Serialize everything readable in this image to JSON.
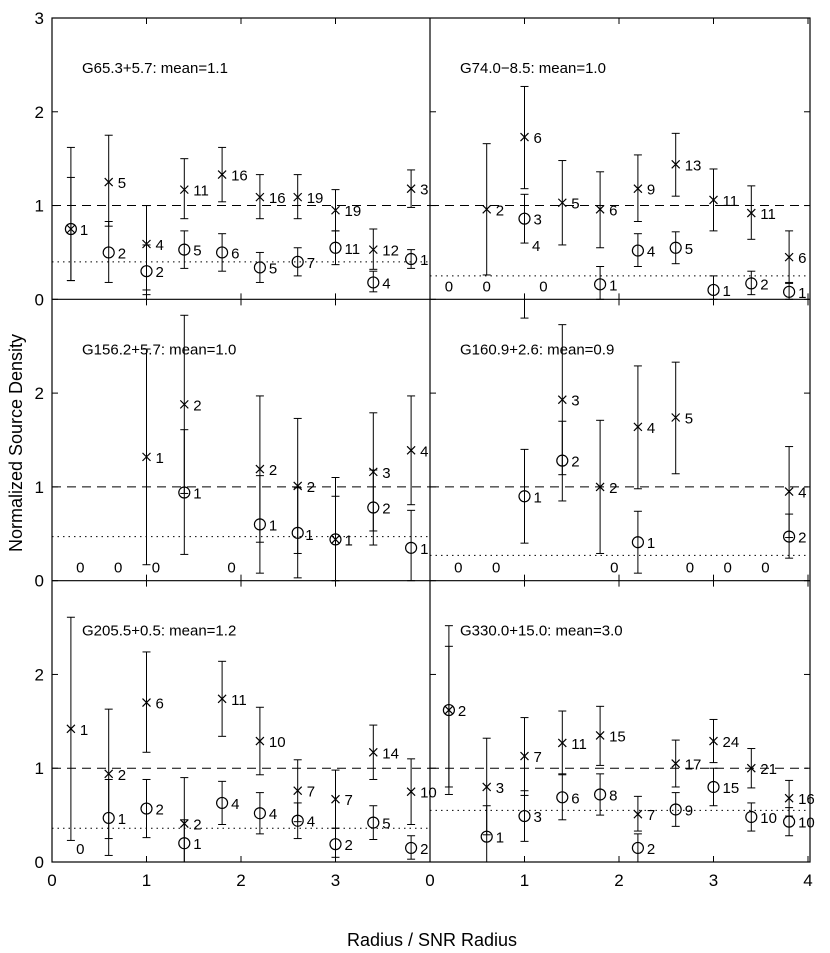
{
  "figure": {
    "ylabel": "Normalized Source Density",
    "xlabel": "Radius / SNR Radius",
    "xticks_left": [
      "0",
      "1",
      "2",
      "3"
    ],
    "xticks_right": [
      "0",
      "1",
      "2",
      "3",
      "4"
    ],
    "yticks_top": [
      "0",
      "1",
      "2",
      "3"
    ],
    "yticks_other": [
      "0",
      "1",
      "2"
    ]
  },
  "chart_data": [
    {
      "type": "scatter",
      "title": "G65.3+5.7: mean=1.1",
      "xlim": [
        0,
        4
      ],
      "ylim": [
        0,
        3
      ],
      "dashed_level": 1.0,
      "dotted_level": 0.4,
      "series": [
        {
          "name": "x markers",
          "marker": "x",
          "points": [
            {
              "x": 0.2,
              "y": 0.75,
              "lo": 0.2,
              "hi": 1.3,
              "label": "1"
            },
            {
              "x": 0.6,
              "y": 1.25,
              "lo": 0.78,
              "hi": 1.75,
              "label": "5"
            },
            {
              "x": 1.0,
              "y": 0.59,
              "lo": 0.1,
              "hi": 1.0,
              "label": "4"
            },
            {
              "x": 1.4,
              "y": 1.17,
              "lo": 0.86,
              "hi": 1.5,
              "label": "11"
            },
            {
              "x": 1.8,
              "y": 1.33,
              "lo": 1.04,
              "hi": 1.62,
              "label": "16"
            },
            {
              "x": 2.2,
              "y": 1.09,
              "lo": 0.86,
              "hi": 1.33,
              "label": "16"
            },
            {
              "x": 2.6,
              "y": 1.09,
              "lo": 0.86,
              "hi": 1.33,
              "label": "19"
            },
            {
              "x": 3.0,
              "y": 0.95,
              "lo": 0.73,
              "hi": 1.17,
              "label": "19"
            },
            {
              "x": 3.4,
              "y": 0.53,
              "lo": 0.32,
              "hi": 0.75,
              "label": "12"
            },
            {
              "x": 3.8,
              "y": 1.18,
              "lo": 0.98,
              "hi": 1.38,
              "label": "3"
            }
          ]
        },
        {
          "name": "o markers",
          "marker": "o",
          "points": [
            {
              "x": 0.2,
              "y": 0.75,
              "lo": 0.2,
              "hi": 1.62,
              "label": ""
            },
            {
              "x": 0.6,
              "y": 0.5,
              "lo": 0.18,
              "hi": 0.83,
              "label": "2"
            },
            {
              "x": 1.0,
              "y": 0.3,
              "lo": 0.05,
              "hi": 0.58,
              "label": "2"
            },
            {
              "x": 1.4,
              "y": 0.53,
              "lo": 0.33,
              "hi": 0.73,
              "label": "5"
            },
            {
              "x": 1.8,
              "y": 0.5,
              "lo": 0.3,
              "hi": 0.7,
              "label": "6"
            },
            {
              "x": 2.2,
              "y": 0.34,
              "lo": 0.18,
              "hi": 0.5,
              "label": "5"
            },
            {
              "x": 2.6,
              "y": 0.4,
              "lo": 0.25,
              "hi": 0.55,
              "label": "7"
            },
            {
              "x": 3.0,
              "y": 0.55,
              "lo": 0.37,
              "hi": 0.73,
              "label": "11"
            },
            {
              "x": 3.4,
              "y": 0.18,
              "lo": 0.08,
              "hi": 0.3,
              "label": "4"
            },
            {
              "x": 3.8,
              "y": 0.43,
              "lo": 0.33,
              "hi": 0.53,
              "label": "1"
            }
          ]
        }
      ],
      "zero_labels": []
    },
    {
      "type": "scatter",
      "title": "G74.0−8.5: mean=1.0",
      "xlim": [
        0,
        4
      ],
      "ylim": [
        0,
        3
      ],
      "dashed_level": 1.0,
      "dotted_level": 0.25,
      "series": [
        {
          "name": "x markers",
          "marker": "x",
          "points": [
            {
              "x": 0.6,
              "y": 0.96,
              "lo": 0.26,
              "hi": 1.66,
              "label": "2"
            },
            {
              "x": 1.0,
              "y": 1.73,
              "lo": 1.18,
              "hi": 2.27,
              "label": "6"
            },
            {
              "x": 1.4,
              "y": 1.03,
              "lo": 0.58,
              "hi": 1.48,
              "label": "5"
            },
            {
              "x": 1.8,
              "y": 0.96,
              "lo": 0.55,
              "hi": 1.36,
              "label": "6"
            },
            {
              "x": 2.2,
              "y": 1.18,
              "lo": 0.83,
              "hi": 1.54,
              "label": "9"
            },
            {
              "x": 2.6,
              "y": 1.44,
              "lo": 1.1,
              "hi": 1.77,
              "label": "13"
            },
            {
              "x": 3.0,
              "y": 1.06,
              "lo": 0.73,
              "hi": 1.39,
              "label": "11"
            },
            {
              "x": 3.4,
              "y": 0.92,
              "lo": 0.64,
              "hi": 1.21,
              "label": "11"
            },
            {
              "x": 3.8,
              "y": 0.45,
              "lo": 0.17,
              "hi": 0.73,
              "label": "6"
            }
          ]
        },
        {
          "name": "o markers",
          "marker": "o",
          "points": [
            {
              "x": 1.0,
              "y": 0.86,
              "lo": 0.6,
              "hi": 1.12,
              "label": "3"
            },
            {
              "x": 1.8,
              "y": 0.16,
              "lo": 0.0,
              "hi": 0.35,
              "label": "1"
            },
            {
              "x": 2.2,
              "y": 0.52,
              "lo": 0.35,
              "hi": 0.7,
              "label": "4"
            },
            {
              "x": 2.6,
              "y": 0.55,
              "lo": 0.38,
              "hi": 0.72,
              "label": "5"
            },
            {
              "x": 3.0,
              "y": 0.1,
              "lo": 0.0,
              "hi": 0.25,
              "label": "1"
            },
            {
              "x": 3.4,
              "y": 0.17,
              "lo": 0.05,
              "hi": 0.3,
              "label": "2"
            },
            {
              "x": 3.8,
              "y": 0.08,
              "lo": 0.0,
              "hi": 0.18,
              "label": "1"
            }
          ]
        }
      ],
      "zero_labels": [
        0.2,
        0.6,
        1.2
      ],
      "extra_labels": [
        {
          "x": 1.08,
          "y": 0.58,
          "text": "4"
        }
      ]
    },
    {
      "type": "scatter",
      "title": "G156.2+5.7: mean=1.0",
      "xlim": [
        0,
        4
      ],
      "ylim": [
        0,
        3
      ],
      "dashed_level": 1.0,
      "dotted_level": 0.47,
      "series": [
        {
          "name": "x markers",
          "marker": "x",
          "points": [
            {
              "x": 1.0,
              "y": 1.32,
              "lo": 0.17,
              "hi": 2.47,
              "label": "1"
            },
            {
              "x": 1.4,
              "y": 1.88,
              "lo": 0.93,
              "hi": 2.83,
              "label": "2"
            },
            {
              "x": 2.2,
              "y": 1.19,
              "lo": 0.41,
              "hi": 1.97,
              "label": "2"
            },
            {
              "x": 2.6,
              "y": 1.01,
              "lo": 0.29,
              "hi": 1.73,
              "label": "2"
            },
            {
              "x": 3.0,
              "y": 0.44,
              "lo": 0.0,
              "hi": 1.1,
              "label": "1"
            },
            {
              "x": 3.4,
              "y": 1.16,
              "lo": 0.53,
              "hi": 1.79,
              "label": "3"
            },
            {
              "x": 3.8,
              "y": 1.39,
              "lo": 0.81,
              "hi": 1.97,
              "label": "4"
            }
          ]
        },
        {
          "name": "o markers",
          "marker": "o",
          "points": [
            {
              "x": 1.4,
              "y": 0.94,
              "lo": 0.28,
              "hi": 1.61,
              "label": "1"
            },
            {
              "x": 2.2,
              "y": 0.6,
              "lo": 0.08,
              "hi": 1.12,
              "label": "1"
            },
            {
              "x": 2.6,
              "y": 0.51,
              "lo": 0.03,
              "hi": 0.99,
              "label": ""
            },
            {
              "x": 3.0,
              "y": 0.44,
              "lo": 0.0,
              "hi": 0.9,
              "label": ""
            },
            {
              "x": 3.4,
              "y": 0.78,
              "lo": 0.38,
              "hi": 1.18,
              "label": "2"
            },
            {
              "x": 3.8,
              "y": 0.35,
              "lo": 0.0,
              "hi": 0.75,
              "label": "1"
            }
          ]
        }
      ],
      "zero_labels": [
        0.3,
        0.7,
        1.1,
        1.9
      ],
      "extra_labels": [
        {
          "x": 2.68,
          "y": 0.5,
          "text": "1"
        }
      ]
    },
    {
      "type": "scatter",
      "title": "G160.9+2.6: mean=0.9",
      "xlim": [
        0,
        4
      ],
      "ylim": [
        0,
        3
      ],
      "dashed_level": 1.0,
      "dotted_level": 0.27,
      "series": [
        {
          "name": "x markers",
          "marker": "x",
          "points": [
            {
              "x": 1.4,
              "y": 1.93,
              "lo": 1.13,
              "hi": 2.73,
              "label": "3"
            },
            {
              "x": 1.8,
              "y": 1.0,
              "lo": 0.29,
              "hi": 1.71,
              "label": "2"
            },
            {
              "x": 2.2,
              "y": 1.64,
              "lo": 0.98,
              "hi": 2.29,
              "label": "4"
            },
            {
              "x": 2.6,
              "y": 1.74,
              "lo": 1.14,
              "hi": 2.33,
              "label": "5"
            },
            {
              "x": 3.8,
              "y": 0.95,
              "lo": 0.46,
              "hi": 1.43,
              "label": "4"
            }
          ]
        },
        {
          "name": "o markers",
          "marker": "o",
          "points": [
            {
              "x": 1.0,
              "y": 0.9,
              "lo": 0.4,
              "hi": 1.4,
              "label": "1"
            },
            {
              "x": 1.4,
              "y": 1.28,
              "lo": 0.85,
              "hi": 1.7,
              "label": "2"
            },
            {
              "x": 2.2,
              "y": 0.41,
              "lo": 0.08,
              "hi": 0.74,
              "label": "1"
            },
            {
              "x": 3.8,
              "y": 0.47,
              "lo": 0.24,
              "hi": 0.71,
              "label": "2"
            }
          ]
        }
      ],
      "zero_labels": [
        0.3,
        0.7,
        1.95,
        2.75,
        3.15,
        3.55
      ],
      "top_stub": {
        "x": 1.0,
        "y": 2.8
      }
    },
    {
      "type": "scatter",
      "title": "G205.5+0.5: mean=1.2",
      "xlim": [
        0,
        4
      ],
      "ylim": [
        0,
        3
      ],
      "dashed_level": 1.0,
      "dotted_level": 0.36,
      "series": [
        {
          "name": "x markers",
          "marker": "x",
          "points": [
            {
              "x": 0.2,
              "y": 1.42,
              "lo": 0.23,
              "hi": 2.61,
              "label": "1"
            },
            {
              "x": 0.6,
              "y": 0.94,
              "lo": 0.25,
              "hi": 1.63,
              "label": "2"
            },
            {
              "x": 1.0,
              "y": 1.7,
              "lo": 1.17,
              "hi": 2.24,
              "label": "6"
            },
            {
              "x": 1.4,
              "y": 0.41,
              "lo": 0.0,
              "hi": 0.9,
              "label": "2"
            },
            {
              "x": 1.8,
              "y": 1.74,
              "lo": 1.34,
              "hi": 2.14,
              "label": "11"
            },
            {
              "x": 2.2,
              "y": 1.29,
              "lo": 0.93,
              "hi": 1.65,
              "label": "10"
            },
            {
              "x": 2.6,
              "y": 0.76,
              "lo": 0.43,
              "hi": 1.09,
              "label": "7"
            },
            {
              "x": 3.0,
              "y": 0.67,
              "lo": 0.36,
              "hi": 0.98,
              "label": "7"
            },
            {
              "x": 3.4,
              "y": 1.17,
              "lo": 0.88,
              "hi": 1.46,
              "label": "14"
            },
            {
              "x": 3.8,
              "y": 0.75,
              "lo": 0.4,
              "hi": 1.1,
              "label": "10"
            }
          ]
        },
        {
          "name": "o markers",
          "marker": "o",
          "points": [
            {
              "x": 0.6,
              "y": 0.47,
              "lo": 0.07,
              "hi": 0.88,
              "label": "1"
            },
            {
              "x": 1.0,
              "y": 0.57,
              "lo": 0.26,
              "hi": 0.88,
              "label": "2"
            },
            {
              "x": 1.4,
              "y": 0.2,
              "lo": 0.0,
              "hi": 0.45,
              "label": "1"
            },
            {
              "x": 1.8,
              "y": 0.63,
              "lo": 0.4,
              "hi": 0.86,
              "label": "4"
            },
            {
              "x": 2.2,
              "y": 0.52,
              "lo": 0.3,
              "hi": 0.74,
              "label": "4"
            },
            {
              "x": 2.6,
              "y": 0.44,
              "lo": 0.25,
              "hi": 0.63,
              "label": "4"
            },
            {
              "x": 3.0,
              "y": 0.19,
              "lo": 0.05,
              "hi": 0.36,
              "label": "2"
            },
            {
              "x": 3.4,
              "y": 0.42,
              "lo": 0.24,
              "hi": 0.6,
              "label": "5"
            },
            {
              "x": 3.8,
              "y": 0.15,
              "lo": 0.03,
              "hi": 0.28,
              "label": "2"
            }
          ]
        }
      ],
      "zero_labels": [
        0.3
      ]
    },
    {
      "type": "scatter",
      "title": "G330.0+15.0: mean=3.0",
      "xlim": [
        0,
        4
      ],
      "ylim": [
        0,
        3
      ],
      "dashed_level": 1.0,
      "dotted_level": 0.55,
      "series": [
        {
          "name": "x markers",
          "marker": "x",
          "points": [
            {
              "x": 0.2,
              "y": 1.62,
              "lo": 0.72,
              "hi": 2.52,
              "label": "2"
            },
            {
              "x": 0.6,
              "y": 0.8,
              "lo": 0.29,
              "hi": 1.32,
              "label": "3"
            },
            {
              "x": 1.0,
              "y": 1.13,
              "lo": 0.71,
              "hi": 1.54,
              "label": "7"
            },
            {
              "x": 1.4,
              "y": 1.27,
              "lo": 0.93,
              "hi": 1.61,
              "label": "11"
            },
            {
              "x": 1.8,
              "y": 1.35,
              "lo": 1.03,
              "hi": 1.66,
              "label": "15"
            },
            {
              "x": 2.2,
              "y": 0.51,
              "lo": 0.33,
              "hi": 0.7,
              "label": "7"
            },
            {
              "x": 2.6,
              "y": 1.05,
              "lo": 0.8,
              "hi": 1.3,
              "label": "17"
            },
            {
              "x": 3.0,
              "y": 1.29,
              "lo": 1.06,
              "hi": 1.52,
              "label": "24"
            },
            {
              "x": 3.4,
              "y": 1.0,
              "lo": 0.79,
              "hi": 1.21,
              "label": "21"
            },
            {
              "x": 3.8,
              "y": 0.68,
              "lo": 0.49,
              "hi": 0.87,
              "label": "16"
            }
          ]
        },
        {
          "name": "o markers",
          "marker": "o",
          "points": [
            {
              "x": 0.2,
              "y": 1.62,
              "lo": 0.8,
              "hi": 2.3,
              "label": ""
            },
            {
              "x": 0.6,
              "y": 0.27,
              "lo": 0.0,
              "hi": 0.6,
              "label": "1"
            },
            {
              "x": 1.0,
              "y": 0.49,
              "lo": 0.22,
              "hi": 0.76,
              "label": "3"
            },
            {
              "x": 1.4,
              "y": 0.69,
              "lo": 0.45,
              "hi": 0.94,
              "label": "6"
            },
            {
              "x": 1.8,
              "y": 0.72,
              "lo": 0.5,
              "hi": 0.94,
              "label": "8"
            },
            {
              "x": 2.2,
              "y": 0.15,
              "lo": 0.0,
              "hi": 0.3,
              "label": "2"
            },
            {
              "x": 2.6,
              "y": 0.56,
              "lo": 0.38,
              "hi": 0.74,
              "label": "9"
            },
            {
              "x": 3.0,
              "y": 0.8,
              "lo": 0.6,
              "hi": 1.0,
              "label": "15"
            },
            {
              "x": 3.4,
              "y": 0.48,
              "lo": 0.33,
              "hi": 0.63,
              "label": "10"
            },
            {
              "x": 3.8,
              "y": 0.43,
              "lo": 0.28,
              "hi": 0.58,
              "label": "10"
            }
          ]
        }
      ],
      "zero_labels": []
    }
  ]
}
